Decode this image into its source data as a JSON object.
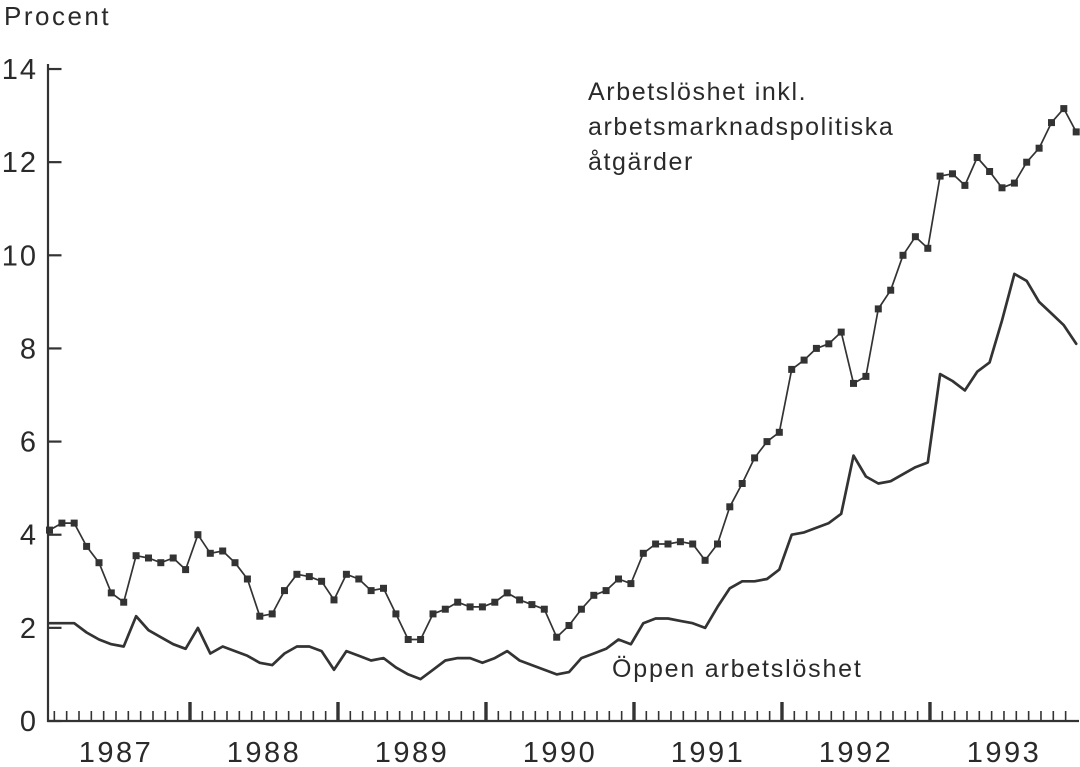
{
  "page": {
    "y_axis_title": "Procent",
    "annotations": {
      "total_line1": "Arbetslöshet inkl.",
      "total_line2": "arbetsmarknadspolitiska",
      "total_line3": "åtgärder",
      "open_label": "Öppen arbetslöshet"
    },
    "colors": {
      "ink": "#333333",
      "background": "#ffffff"
    }
  },
  "chart_data": {
    "type": "line",
    "title": "",
    "xlabel": "",
    "ylabel": "Procent",
    "ylim": [
      0,
      14
    ],
    "y_ticks": [
      0,
      2,
      4,
      6,
      8,
      10,
      12,
      14
    ],
    "grid": false,
    "legend_position": "inline-annotations",
    "x_unit": "month",
    "x_range": "Jan 1987 - Dec 1993",
    "year_labels": [
      "1987",
      "1988",
      "1989",
      "1990",
      "1991",
      "1992",
      "1993"
    ],
    "series": [
      {
        "name": "Arbetslöshet inkl. arbetsmarknadspolitiska åtgärder",
        "marker": "square",
        "line_width": "thin",
        "values": [
          4.1,
          4.25,
          4.25,
          3.75,
          3.4,
          2.75,
          2.55,
          3.55,
          3.5,
          3.4,
          3.5,
          3.25,
          4.0,
          3.6,
          3.65,
          3.4,
          3.05,
          2.25,
          2.3,
          2.8,
          3.15,
          3.1,
          3.0,
          2.6,
          3.15,
          3.05,
          2.8,
          2.85,
          2.3,
          1.75,
          1.75,
          2.3,
          2.4,
          2.55,
          2.45,
          2.45,
          2.55,
          2.75,
          2.6,
          2.5,
          2.4,
          1.8,
          2.05,
          2.4,
          2.7,
          2.8,
          3.05,
          2.95,
          3.6,
          3.8,
          3.8,
          3.85,
          3.8,
          3.45,
          3.8,
          4.6,
          5.1,
          5.65,
          6.0,
          6.2,
          7.55,
          7.75,
          8.0,
          8.1,
          8.35,
          7.25,
          7.4,
          8.85,
          9.25,
          10.0,
          10.4,
          10.15,
          11.7,
          11.75,
          11.5,
          12.1,
          11.8,
          11.45,
          11.55,
          12.0,
          12.3,
          12.85,
          13.15,
          12.65
        ]
      },
      {
        "name": "Öppen arbetslöshet",
        "marker": "none",
        "line_width": "thick",
        "values": [
          2.1,
          2.1,
          2.1,
          1.9,
          1.75,
          1.65,
          1.6,
          2.25,
          1.95,
          1.8,
          1.65,
          1.55,
          2.0,
          1.45,
          1.6,
          1.5,
          1.4,
          1.25,
          1.2,
          1.45,
          1.6,
          1.6,
          1.5,
          1.1,
          1.5,
          1.4,
          1.3,
          1.35,
          1.15,
          1.0,
          0.9,
          1.1,
          1.3,
          1.35,
          1.35,
          1.25,
          1.35,
          1.5,
          1.3,
          1.2,
          1.1,
          1.0,
          1.05,
          1.35,
          1.45,
          1.55,
          1.75,
          1.65,
          2.1,
          2.2,
          2.2,
          2.15,
          2.1,
          2.0,
          2.45,
          2.85,
          3.0,
          3.0,
          3.05,
          3.25,
          4.0,
          4.05,
          4.15,
          4.25,
          4.45,
          5.7,
          5.25,
          5.1,
          5.15,
          5.3,
          5.45,
          5.55,
          7.45,
          7.3,
          7.1,
          7.5,
          7.7,
          8.6,
          9.6,
          9.45,
          9.0,
          8.75,
          8.5,
          8.1
        ]
      }
    ]
  }
}
